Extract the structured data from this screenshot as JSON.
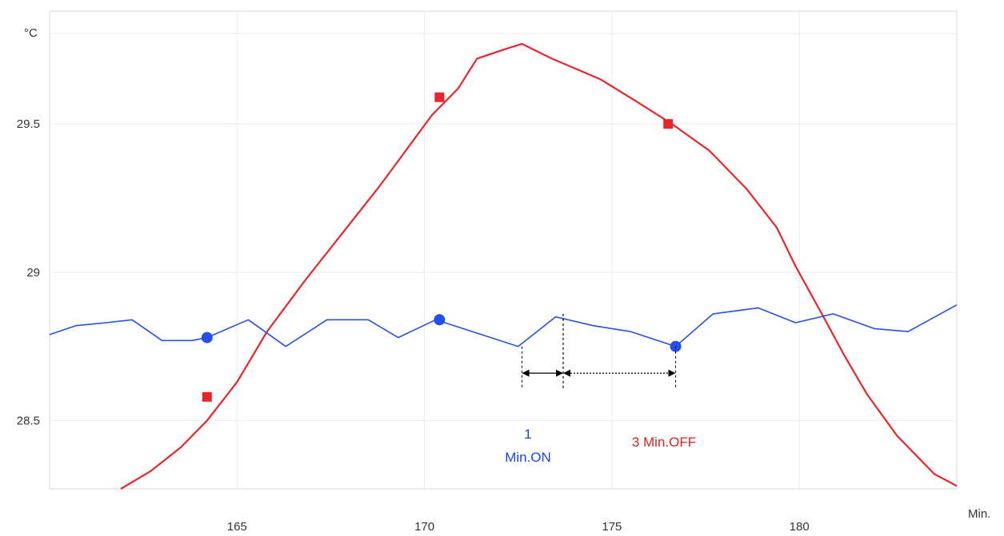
{
  "chart_data": {
    "type": "line",
    "ylabel": "°C",
    "xlabel": "Min.",
    "xlim": [
      160,
      184.2
    ],
    "ylim": [
      28.27,
      29.88
    ],
    "x_ticks": [
      165,
      170,
      175,
      180
    ],
    "y_ticks": [
      28.5,
      29,
      29.5
    ],
    "x_tick_labels": [
      "165",
      "170",
      "175",
      "180"
    ],
    "y_tick_labels": [
      "28.5",
      "29",
      "29.5"
    ],
    "grid": true,
    "series": [
      {
        "color": "#e8252b",
        "marker": "square",
        "points": [
          [
            161.9,
            28.27
          ],
          [
            162.7,
            28.33
          ],
          [
            163.5,
            28.41
          ],
          [
            164.2,
            28.5
          ],
          [
            165.0,
            28.63
          ],
          [
            165.8,
            28.8
          ],
          [
            166.8,
            28.97
          ],
          [
            167.8,
            29.13
          ],
          [
            168.8,
            29.29
          ],
          [
            169.5,
            29.41
          ],
          [
            170.2,
            29.53
          ],
          [
            170.9,
            29.62
          ],
          [
            171.4,
            29.72
          ],
          [
            172.1,
            29.75
          ],
          [
            172.6,
            29.77
          ],
          [
            173.4,
            29.72
          ],
          [
            174.7,
            29.65
          ],
          [
            175.6,
            29.58
          ],
          [
            176.6,
            29.5
          ],
          [
            177.6,
            29.41
          ],
          [
            178.6,
            29.28
          ],
          [
            179.4,
            29.15
          ],
          [
            179.9,
            29.02
          ],
          [
            180.6,
            28.86
          ],
          [
            181.2,
            28.72
          ],
          [
            181.8,
            28.59
          ],
          [
            182.6,
            28.45
          ],
          [
            183.6,
            28.32
          ],
          [
            184.2,
            28.28
          ]
        ],
        "markers": [
          [
            164.2,
            28.58
          ],
          [
            170.4,
            29.59
          ],
          [
            176.5,
            29.5
          ]
        ]
      },
      {
        "color": "#2450e8",
        "marker": "circle",
        "points": [
          [
            160.0,
            28.79
          ],
          [
            160.7,
            28.82
          ],
          [
            161.5,
            28.83
          ],
          [
            162.2,
            28.84
          ],
          [
            163.0,
            28.77
          ],
          [
            163.8,
            28.77
          ],
          [
            164.2,
            28.78
          ],
          [
            165.3,
            28.84
          ],
          [
            166.3,
            28.75
          ],
          [
            167.4,
            28.84
          ],
          [
            168.5,
            28.84
          ],
          [
            169.3,
            28.78
          ],
          [
            170.3,
            28.84
          ],
          [
            172.5,
            28.75
          ],
          [
            173.5,
            28.85
          ],
          [
            174.5,
            28.82
          ],
          [
            175.5,
            28.8
          ],
          [
            176.7,
            28.75
          ],
          [
            177.7,
            28.86
          ],
          [
            178.9,
            28.88
          ],
          [
            179.9,
            28.83
          ],
          [
            180.9,
            28.86
          ],
          [
            182.0,
            28.81
          ],
          [
            182.9,
            28.8
          ],
          [
            184.2,
            28.89
          ]
        ],
        "markers": [
          [
            164.2,
            28.78
          ],
          [
            170.4,
            28.84
          ],
          [
            176.7,
            28.75
          ]
        ]
      }
    ],
    "annotations": {
      "bracket_start": 172.6,
      "bracket_mid": 173.7,
      "bracket_end": 176.7,
      "bracket_y": 28.66,
      "bracket_vline_top": 28.86,
      "on_line1": "1",
      "on_line2": "Min.ON",
      "off_label": "3 Min.OFF"
    }
  }
}
